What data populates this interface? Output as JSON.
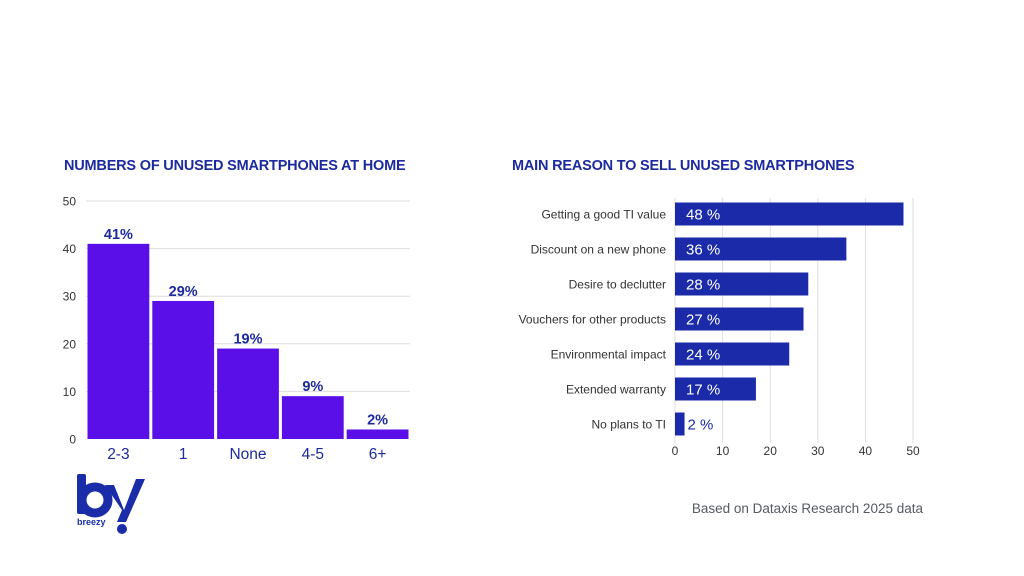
{
  "colors": {
    "title": "#1c2a9e",
    "left_bar": "#5b0fe8",
    "right_bar": "#1a2aa8",
    "left_label": "#1c2a9e",
    "left_tick_label": "#1c2a9e",
    "grid": "#dedede",
    "axis_text": "#333333"
  },
  "chart_data": [
    {
      "type": "bar",
      "title": "NUMBERS OF UNUSED SMARTPHONES AT HOME",
      "categories": [
        "2-3",
        "1",
        "None",
        "4-5",
        "6+"
      ],
      "values": [
        41,
        29,
        19,
        9,
        2
      ],
      "data_labels": [
        "41%",
        "29%",
        "19%",
        "9%",
        "2%"
      ],
      "yticks": [
        "0",
        "10",
        "20",
        "30",
        "40",
        "50"
      ],
      "ylim": [
        0,
        50
      ],
      "grid": true,
      "orientation": "vertical"
    },
    {
      "type": "bar",
      "title": "MAIN REASON TO SELL UNUSED SMARTPHONES",
      "categories": [
        "Getting a good TI value",
        "Discount on a new phone",
        "Desire to declutter",
        "Vouchers for other products",
        "Environmental impact",
        "Extended warranty",
        "No plans to TI"
      ],
      "values": [
        48,
        36,
        28,
        27,
        24,
        17,
        2
      ],
      "data_labels": [
        "48 %",
        "36 %",
        "28 %",
        "27 %",
        "24 %",
        "17 %",
        "2 %"
      ],
      "xticks": [
        "0",
        "10",
        "20",
        "30",
        "40",
        "50"
      ],
      "xlim": [
        0,
        50
      ],
      "grid": true,
      "orientation": "horizontal"
    }
  ],
  "source_note": "Based on Dataxis Research 2025 data",
  "logo": {
    "name": "breezy-logo",
    "word": "breezy"
  }
}
